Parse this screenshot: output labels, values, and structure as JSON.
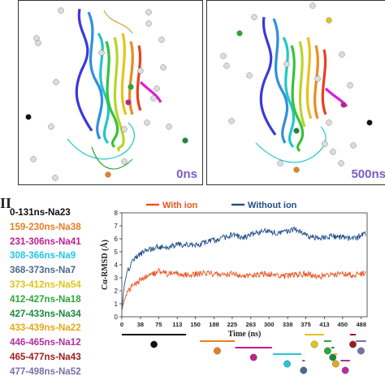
{
  "panels": [
    {
      "time_label": "0ns"
    },
    {
      "time_label": "500ns"
    }
  ],
  "panel_label": "II",
  "legend": [
    {
      "label": "0-131ns-Na23",
      "color": "#111111"
    },
    {
      "label": "159-230ns-Na38",
      "color": "#e87e22"
    },
    {
      "label": "231-306ns-Na41",
      "color": "#c21e8e"
    },
    {
      "label": "308-366ns-Na9",
      "color": "#22c7e0"
    },
    {
      "label": "368-373ns-Na7",
      "color": "#4b6a8c"
    },
    {
      "label": "373-412ns-Na54",
      "color": "#e3c21c"
    },
    {
      "label": "412-427ns-Na18",
      "color": "#2aa836"
    },
    {
      "label": "427-433ns-Na34",
      "color": "#178a3a"
    },
    {
      "label": "433-439ns-Na22",
      "color": "#e8a81c"
    },
    {
      "label": "446-465ns-Na12",
      "color": "#b42ea0"
    },
    {
      "label": "465-477ns-Na43",
      "color": "#9e1c1c"
    },
    {
      "label": "477-498ns-Na52",
      "color": "#7b6fa8"
    }
  ],
  "chart_data": {
    "type": "line",
    "xlabel": "Time (ns)",
    "ylabel": "Cα-RMSD (Å)",
    "xticks": [
      0,
      38,
      75,
      113,
      150,
      188,
      225,
      263,
      300,
      338,
      375,
      413,
      450,
      488
    ],
    "yticks": [
      0,
      1,
      2,
      3,
      4,
      5,
      6,
      7,
      8
    ],
    "xlim": [
      0,
      500
    ],
    "ylim": [
      0,
      8
    ],
    "legend_position": "top",
    "series": [
      {
        "name": "With ion",
        "color": "#e8541e",
        "x": [
          0,
          5,
          12,
          20,
          30,
          45,
          60,
          75,
          90,
          110,
          130,
          150,
          175,
          200,
          225,
          250,
          275,
          300,
          325,
          350,
          375,
          400,
          425,
          450,
          475,
          498
        ],
        "y": [
          0.5,
          1.3,
          1.9,
          2.3,
          2.6,
          3.0,
          3.2,
          3.5,
          3.3,
          3.4,
          3.2,
          3.3,
          3.4,
          3.2,
          3.3,
          3.1,
          3.2,
          3.3,
          3.1,
          3.2,
          3.3,
          3.1,
          3.2,
          3.3,
          3.2,
          3.4
        ]
      },
      {
        "name": "Without ion",
        "color": "#1f4e8a",
        "x": [
          0,
          5,
          12,
          20,
          30,
          45,
          60,
          75,
          90,
          110,
          130,
          150,
          175,
          200,
          225,
          250,
          275,
          300,
          325,
          350,
          375,
          400,
          425,
          450,
          475,
          498
        ],
        "y": [
          0.6,
          2.5,
          3.5,
          4.1,
          4.6,
          5.0,
          5.2,
          5.4,
          5.3,
          5.5,
          5.6,
          5.5,
          5.8,
          6.0,
          6.3,
          6.1,
          6.5,
          6.6,
          6.4,
          6.8,
          6.3,
          6.0,
          6.2,
          6.1,
          6.0,
          6.4
        ]
      }
    ],
    "intervals": [
      {
        "start": 0,
        "end": 131,
        "color": "#111111"
      },
      {
        "start": 159,
        "end": 230,
        "color": "#e87e22"
      },
      {
        "start": 231,
        "end": 306,
        "color": "#c21e8e"
      },
      {
        "start": 308,
        "end": 366,
        "color": "#22c7e0"
      },
      {
        "start": 368,
        "end": 373,
        "color": "#4b6a8c"
      },
      {
        "start": 373,
        "end": 412,
        "color": "#e3c21c"
      },
      {
        "start": 412,
        "end": 427,
        "color": "#2aa836"
      },
      {
        "start": 427,
        "end": 433,
        "color": "#178a3a"
      },
      {
        "start": 433,
        "end": 439,
        "color": "#e8a81c"
      },
      {
        "start": 446,
        "end": 465,
        "color": "#b42ea0"
      },
      {
        "start": 465,
        "end": 477,
        "color": "#9e1c1c"
      },
      {
        "start": 477,
        "end": 498,
        "color": "#7b6fa8"
      }
    ]
  }
}
